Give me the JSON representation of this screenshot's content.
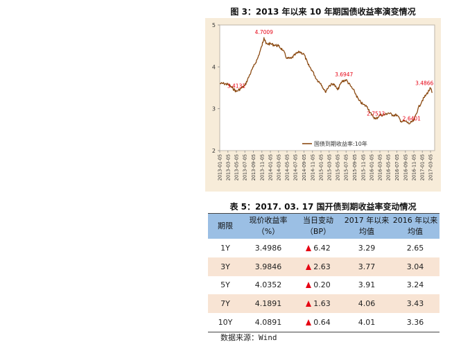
{
  "chart_data": {
    "type": "line",
    "title": "图 3：2013 年以来 10 年期国债收益率演变情况",
    "legend_label": "国债到期收益率:10年",
    "legend_position": "bottom-center",
    "ylim": [
      2,
      5
    ],
    "yticks": [
      "2",
      "3",
      "4",
      "5"
    ],
    "xticks": [
      "2013-01-05",
      "2013-03-05",
      "2013-05-05",
      "2013-07-05",
      "2013-09-05",
      "2013-11-05",
      "2014-01-05",
      "2014-03-05",
      "2014-05-05",
      "2014-07-05",
      "2014-09-05",
      "2014-11-05",
      "2015-01-05",
      "2015-03-05",
      "2015-05-05",
      "2015-07-05",
      "2015-09-05",
      "2015-11-05",
      "2016-01-05",
      "2016-03-05",
      "2016-05-05",
      "2016-07-05",
      "2016-09-05",
      "2016-11-05",
      "2017-01-05",
      "2017-03-05"
    ],
    "series": [
      {
        "color": "#8b4a12",
        "x": [
          "2013-01-05",
          "2013-02-05",
          "2013-03-05",
          "2013-04-05",
          "2013-05-05",
          "2013-06-05",
          "2013-07-05",
          "2013-08-05",
          "2013-09-05",
          "2013-10-05",
          "2013-11-05",
          "2013-11-20",
          "2013-12-05",
          "2014-01-05",
          "2014-02-05",
          "2014-03-05",
          "2014-04-05",
          "2014-05-05",
          "2014-06-05",
          "2014-07-05",
          "2014-08-05",
          "2014-09-05",
          "2014-10-05",
          "2014-11-05",
          "2014-12-05",
          "2015-01-05",
          "2015-02-05",
          "2015-03-05",
          "2015-04-05",
          "2015-05-05",
          "2015-06-05",
          "2015-07-05",
          "2015-08-05",
          "2015-09-05",
          "2015-10-05",
          "2015-11-05",
          "2015-12-05",
          "2016-01-05",
          "2016-02-05",
          "2016-03-05",
          "2016-04-05",
          "2016-05-05",
          "2016-06-05",
          "2016-07-05",
          "2016-08-05",
          "2016-09-05",
          "2016-10-05",
          "2016-11-05",
          "2016-12-05",
          "2017-01-05",
          "2017-02-05",
          "2017-03-05",
          "2017-03-17"
        ],
        "values": [
          3.6,
          3.6,
          3.58,
          3.5,
          3.41,
          3.48,
          3.55,
          3.78,
          4.0,
          4.2,
          4.5,
          4.7,
          4.55,
          4.55,
          4.52,
          4.5,
          4.4,
          4.2,
          4.2,
          4.3,
          4.36,
          4.3,
          4.05,
          3.9,
          3.7,
          3.6,
          3.4,
          3.55,
          3.6,
          3.45,
          3.65,
          3.69,
          3.55,
          3.4,
          3.2,
          3.1,
          3.05,
          2.85,
          2.75,
          2.85,
          2.85,
          2.9,
          2.85,
          2.85,
          2.7,
          2.7,
          2.64,
          2.72,
          3.0,
          3.2,
          3.35,
          3.49,
          3.38
        ]
      }
    ],
    "annotations": [
      {
        "x": "2013-05-05",
        "y": 3.4131,
        "label": "3.4131"
      },
      {
        "x": "2013-11-20",
        "y": 4.7009,
        "label": "4.7009"
      },
      {
        "x": "2015-06-20",
        "y": 3.6947,
        "label": "3.6947"
      },
      {
        "x": "2016-02-05",
        "y": 2.7513,
        "label": "2.7513"
      },
      {
        "x": "2016-10-20",
        "y": 2.6401,
        "label": "2.6401"
      },
      {
        "x": "2017-01-20",
        "y": 3.4866,
        "label": "3.4866"
      }
    ]
  },
  "table": {
    "title": "表 5：2017. 03. 17 国开债到期收益率变动情况",
    "headers": [
      {
        "line1": "期限",
        "line2": ""
      },
      {
        "line1": "现价收益率",
        "line2": "（%）"
      },
      {
        "line1": "当日变动",
        "line2": "（BP）"
      },
      {
        "line1": "2017 年以来",
        "line2": "均值"
      },
      {
        "line1": "2016 年以来",
        "line2": "均值"
      }
    ],
    "rows": [
      {
        "term": "1Y",
        "yield": "3.4986",
        "change": "6.42",
        "avg2017": "3.29",
        "avg2016": "2.65"
      },
      {
        "term": "3Y",
        "yield": "3.9846",
        "change": "2.63",
        "avg2017": "3.77",
        "avg2016": "3.04"
      },
      {
        "term": "5Y",
        "yield": "4.0352",
        "change": "0.20",
        "avg2017": "3.91",
        "avg2016": "3.24"
      },
      {
        "term": "7Y",
        "yield": "4.1891",
        "change": "1.63",
        "avg2017": "4.06",
        "avg2016": "3.43"
      },
      {
        "term": "10Y",
        "yield": "4.0891",
        "change": "0.64",
        "avg2017": "4.01",
        "avg2016": "3.36"
      }
    ],
    "change_color": "#e60012",
    "change_icon": "arrow-up-icon"
  },
  "source": "数据来源：Wind"
}
